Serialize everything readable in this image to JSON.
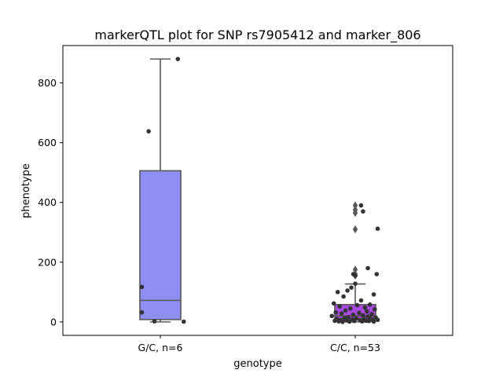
{
  "chart_data": {
    "type": "box",
    "title": "markerQTL plot for SNP rs7905412 and marker_806",
    "xlabel": "genotype",
    "ylabel": "phenotype",
    "ylim": [
      -45,
      925
    ],
    "yticks": [
      0,
      200,
      400,
      600,
      800
    ],
    "categories": [
      "G/C, n=6",
      "C/C, n=53"
    ],
    "boxes": [
      {
        "category": "G/C, n=6",
        "color": "#8f8ff2",
        "q1": 8,
        "median": 72,
        "q3": 506,
        "whisker_low": 0,
        "whisker_high": 880,
        "outliers": []
      },
      {
        "category": "C/C, n=53",
        "color": "#a94ae0",
        "q1": 6,
        "median": 20,
        "q3": 58,
        "whisker_low": 0,
        "whisker_high": 127,
        "outliers": [
          155,
          160,
          175,
          310,
          365,
          375,
          390
        ]
      }
    ],
    "points": [
      {
        "category": "G/C, n=6",
        "y": [
          880,
          638,
          117,
          32,
          2,
          1
        ],
        "jitter": [
          0.18,
          -0.12,
          -0.19,
          -0.19,
          -0.06,
          0.24
        ]
      },
      {
        "category": "C/C, n=53",
        "y": [
          390,
          370,
          312,
          180,
          160,
          155,
          160,
          128,
          115,
          105,
          100,
          92,
          85,
          72,
          62,
          58,
          56,
          52,
          48,
          45,
          42,
          38,
          35,
          32,
          30,
          28,
          26,
          24,
          22,
          20,
          18,
          16,
          15,
          14,
          12,
          11,
          10,
          9,
          8,
          7,
          6,
          6,
          5,
          5,
          4,
          4,
          3,
          3,
          2,
          2,
          1,
          1,
          0
        ],
        "jitter": [
          0.06,
          0.08,
          0.23,
          0.13,
          0.22,
          0.0,
          -0.02,
          0.0,
          -0.04,
          -0.08,
          -0.18,
          0.19,
          -0.12,
          0.06,
          -0.22,
          0.15,
          0.02,
          -0.16,
          0.1,
          -0.05,
          0.2,
          -0.1,
          0.12,
          -0.2,
          0.04,
          -0.14,
          0.17,
          -0.02,
          0.08,
          -0.24,
          0.13,
          -0.07,
          0.21,
          -0.11,
          0.01,
          0.16,
          -0.19,
          0.09,
          -0.03,
          0.23,
          -0.15,
          0.05,
          -0.09,
          0.18,
          -0.21,
          0.11,
          -0.01,
          0.14,
          -0.17,
          0.07,
          -0.06,
          0.19,
          -0.13
        ]
      }
    ]
  }
}
